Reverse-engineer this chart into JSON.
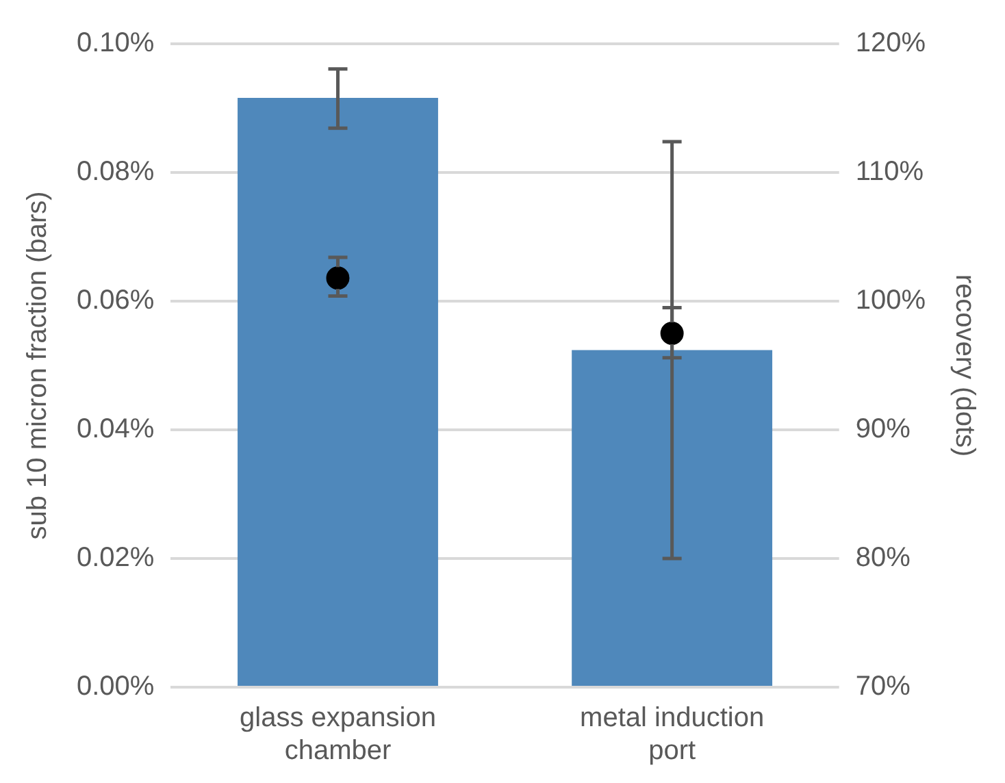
{
  "chart_data": {
    "type": "bar",
    "categories": [
      "glass expansion chamber",
      "metal induction port"
    ],
    "series": [
      {
        "color": "#4f88bb",
        "values": [
          0.0916,
          0.0524
        ],
        "errors": [
          [
            0.0869,
            0.0961
          ],
          [
            0.02,
            0.0848
          ]
        ]
      },
      {
        "type": "scatter",
        "axis": "y2",
        "color": "#000000",
        "x": [
          "glass expansion chamber",
          "metal induction port"
        ],
        "values": [
          101.8,
          97.5
        ],
        "errors": [
          [
            100.4,
            103.4
          ],
          [
            95.6,
            99.5
          ]
        ]
      }
    ],
    "ylabel": "sub 10 micron fraction (bars)",
    "y2label": "recovery (dots)",
    "ylim": [
      0,
      0.1
    ],
    "yticks": [
      {
        "value": 0,
        "label": "0.00%"
      },
      {
        "value": 0.02,
        "label": "0.02%"
      },
      {
        "value": 0.04,
        "label": "0.04%"
      },
      {
        "value": 0.06,
        "label": "0.06%"
      },
      {
        "value": 0.08,
        "label": "0.08%"
      },
      {
        "value": 0.1,
        "label": "0.10%"
      }
    ],
    "y2lim": [
      70,
      120
    ],
    "y2ticks": [
      {
        "value": 70,
        "label": "70%"
      },
      {
        "value": 80,
        "label": "80%"
      },
      {
        "value": 90,
        "label": "90%"
      },
      {
        "value": 100,
        "label": "100%"
      },
      {
        "value": 110,
        "label": "110%"
      },
      {
        "value": 120,
        "label": "120%"
      }
    ],
    "grid": "y",
    "marker": "circle"
  }
}
